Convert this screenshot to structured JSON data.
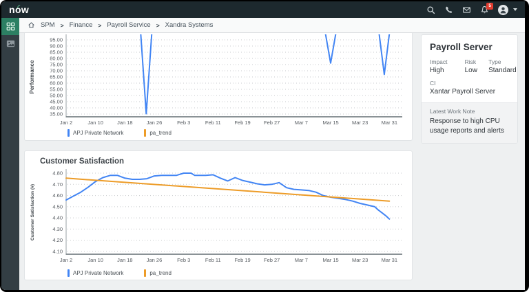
{
  "header": {
    "logo": "now",
    "notification_badge": "5",
    "icons": [
      "search-icon",
      "phone-icon",
      "mail-icon",
      "notifications-bell-icon",
      "user-avatar",
      "caret-down-icon"
    ]
  },
  "breadcrumb": {
    "items": [
      "SPM",
      "Finance",
      "Payroll Service",
      "Xandra Systems"
    ]
  },
  "sidebar": {
    "items": [
      "grid-workspaces",
      "visual-board"
    ]
  },
  "panel": {
    "title": "Payroll Server",
    "impact_label": "Impact",
    "impact_value": "High",
    "risk_label": "Risk",
    "risk_value": "Low",
    "type_label": "Type",
    "type_value": "Standard",
    "ci_label": "CI",
    "ci_value": "Xantar Payroll Server",
    "work_note_label": "Latest Work Note",
    "work_note_text": "Response to high CPU usage reports and alerts"
  },
  "colors": {
    "blue_series": "#4285f4",
    "orange_series": "#ed9c28",
    "header_bg": "#1d292e",
    "sidebar_active": "#2c7f63",
    "badge_red": "#e03c2f"
  },
  "chart_data": [
    {
      "type": "line",
      "title": "",
      "ylabel": "Performance",
      "ylim": [
        35,
        95
      ],
      "yticks": [
        35,
        40,
        45,
        50,
        55,
        60,
        65,
        70,
        75,
        80,
        85,
        90,
        95
      ],
      "xlim": [
        0,
        90
      ],
      "xtick_days": [
        0,
        8,
        16,
        24,
        32,
        40,
        48,
        56,
        64,
        72,
        80,
        88
      ],
      "xtick_labels": [
        "Jan 2",
        "Jan 10",
        "Jan 18",
        "Jan 26",
        "Feb 3",
        "Feb 11",
        "Feb 19",
        "Feb 27",
        "Mar 7",
        "Mar 15",
        "Mar 23",
        "Mar 31"
      ],
      "grid": "dotted-horizontal",
      "legend_position": "bottom",
      "note": "Series sits above the clipped top of the visible plot; only three downward spikes are visible: ~Jan 23 to 35.3, Mar 15 to 76.2, ~Mar 30 to 67",
      "series": [
        {
          "name": "APJ Private Network",
          "color": "#4285f4",
          "points": [
            [
              0,
              100
            ],
            [
              20.3,
              100
            ],
            [
              21.8,
              35.3
            ],
            [
              23.3,
              100
            ],
            [
              70.6,
              100
            ],
            [
              72,
              76.2
            ],
            [
              73.4,
              100
            ],
            [
              85.2,
              100
            ],
            [
              86.6,
              67
            ],
            [
              88,
              100
            ]
          ]
        },
        {
          "name": "pa_trend",
          "color": "#ed9c28",
          "points": []
        }
      ]
    },
    {
      "type": "line",
      "title": "Customer Satisfaction",
      "ylabel": "Customer Satisfaction (#)",
      "ylim": [
        4.1,
        4.8
      ],
      "yticks": [
        4.1,
        4.2,
        4.3,
        4.4,
        4.5,
        4.6,
        4.7,
        4.8
      ],
      "xlim": [
        0,
        90
      ],
      "xtick_days": [
        0,
        8,
        16,
        24,
        32,
        40,
        48,
        56,
        64,
        72,
        80,
        88
      ],
      "xtick_labels": [
        "Jan 2",
        "Jan 10",
        "Jan 18",
        "Jan 26",
        "Feb 3",
        "Feb 11",
        "Feb 19",
        "Feb 27",
        "Mar 7",
        "Mar 15",
        "Mar 23",
        "Mar 31"
      ],
      "grid": "dotted-horizontal",
      "legend_position": "bottom",
      "series": [
        {
          "name": "APJ Private Network",
          "color": "#4285f4",
          "points": [
            [
              0,
              4.56
            ],
            [
              2,
              4.595
            ],
            [
              4,
              4.63
            ],
            [
              6,
              4.675
            ],
            [
              8,
              4.725
            ],
            [
              10,
              4.76
            ],
            [
              12,
              4.78
            ],
            [
              14,
              4.78
            ],
            [
              16,
              4.755
            ],
            [
              18,
              4.745
            ],
            [
              20,
              4.745
            ],
            [
              22,
              4.75
            ],
            [
              24,
              4.775
            ],
            [
              26,
              4.78
            ],
            [
              28,
              4.78
            ],
            [
              30,
              4.78
            ],
            [
              32,
              4.8
            ],
            [
              34,
              4.8
            ],
            [
              35,
              4.78
            ],
            [
              38,
              4.78
            ],
            [
              40,
              4.785
            ],
            [
              42,
              4.755
            ],
            [
              44,
              4.73
            ],
            [
              46,
              4.76
            ],
            [
              48,
              4.735
            ],
            [
              50,
              4.72
            ],
            [
              52,
              4.705
            ],
            [
              54,
              4.695
            ],
            [
              56,
              4.7
            ],
            [
              58,
              4.715
            ],
            [
              60,
              4.67
            ],
            [
              62,
              4.655
            ],
            [
              64,
              4.65
            ],
            [
              66,
              4.645
            ],
            [
              68,
              4.63
            ],
            [
              70,
              4.6
            ],
            [
              72,
              4.585
            ],
            [
              74,
              4.575
            ],
            [
              76,
              4.565
            ],
            [
              78,
              4.55
            ],
            [
              80,
              4.53
            ],
            [
              82,
              4.515
            ],
            [
              84,
              4.5
            ],
            [
              85,
              4.47
            ],
            [
              86,
              4.445
            ],
            [
              87,
              4.42
            ],
            [
              88,
              4.39
            ]
          ]
        },
        {
          "name": "pa_trend",
          "color": "#ed9c28",
          "points": [
            [
              0,
              4.755
            ],
            [
              88,
              4.55
            ]
          ]
        }
      ]
    }
  ]
}
